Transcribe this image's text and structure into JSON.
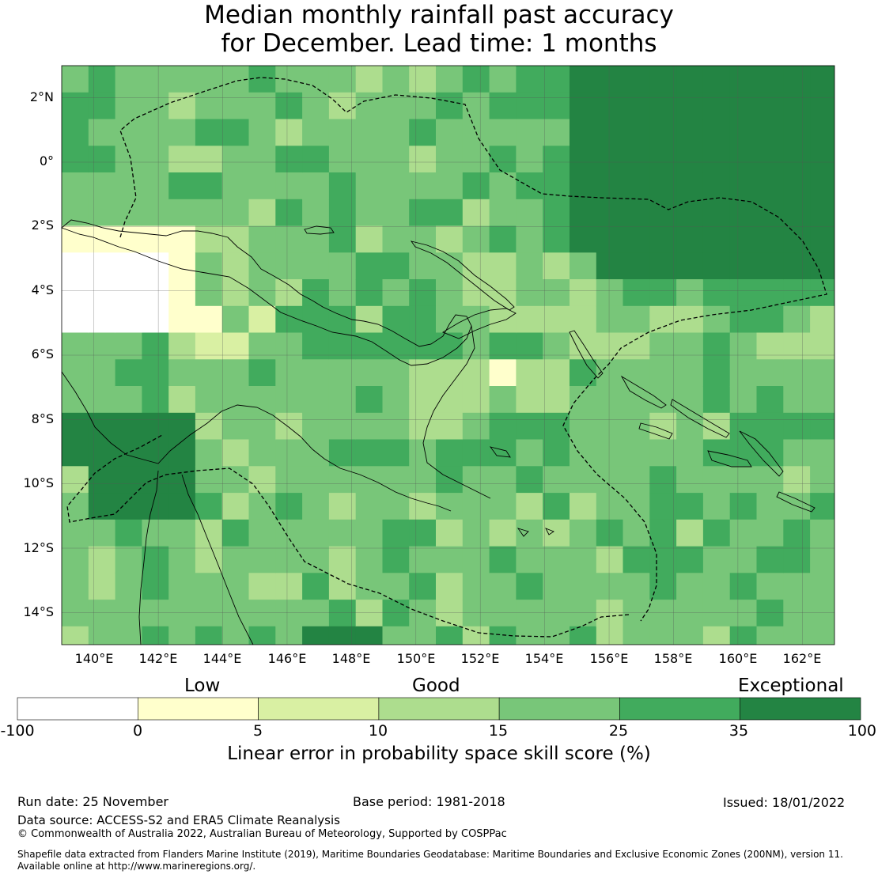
{
  "title": {
    "line1": "Median monthly rainfall past accuracy",
    "line2": "for December. Lead time: 1 months"
  },
  "map": {
    "lon_range": [
      139,
      163
    ],
    "lat_range": [
      -15,
      3
    ],
    "lat_ticks": [
      "2°N",
      "0°",
      "2°S",
      "4°S",
      "6°S",
      "8°S",
      "10°S",
      "12°S",
      "14°S"
    ],
    "lon_ticks": [
      "140°E",
      "142°E",
      "144°E",
      "146°E",
      "148°E",
      "150°E",
      "152°E",
      "154°E",
      "156°E",
      "158°E",
      "160°E",
      "162°E"
    ],
    "grid_resolution_deg": 0.83,
    "skill_field_note": "Linear error in probability space skill score (%), per grid cell"
  },
  "legend": {
    "categories": [
      "Low",
      "Good",
      "Exceptional"
    ],
    "boundaries": [
      "-100",
      "0",
      "5",
      "10",
      "15",
      "25",
      "35",
      "100"
    ],
    "colors": [
      "#ffffff",
      "#ffffcc",
      "#d9f0a3",
      "#addd8e",
      "#78c679",
      "#41ab5d",
      "#238443"
    ],
    "label": "Linear error in probability space skill score (%)"
  },
  "footer": {
    "run_date": "Run date: 25 November",
    "base_period": "Base period: 1981-2018",
    "issued": "Issued: 18/01/2022",
    "data_source": "Data source: ACCESS-S2 and ERA5 Climate Reanalysis",
    "copyright": "© Commonwealth of Australia 2022, Australian Bureau of Meteorology, Supported by COSPPac",
    "shapefile1": "Shapefile data extracted from Flanders Marine Institute (2019), Maritime Boundaries Geodatabase: Maritime Boundaries and Exclusive Economic Zones (200NM), version 11.",
    "shapefile2": "Available online at http://www.marineregions.org/."
  }
}
